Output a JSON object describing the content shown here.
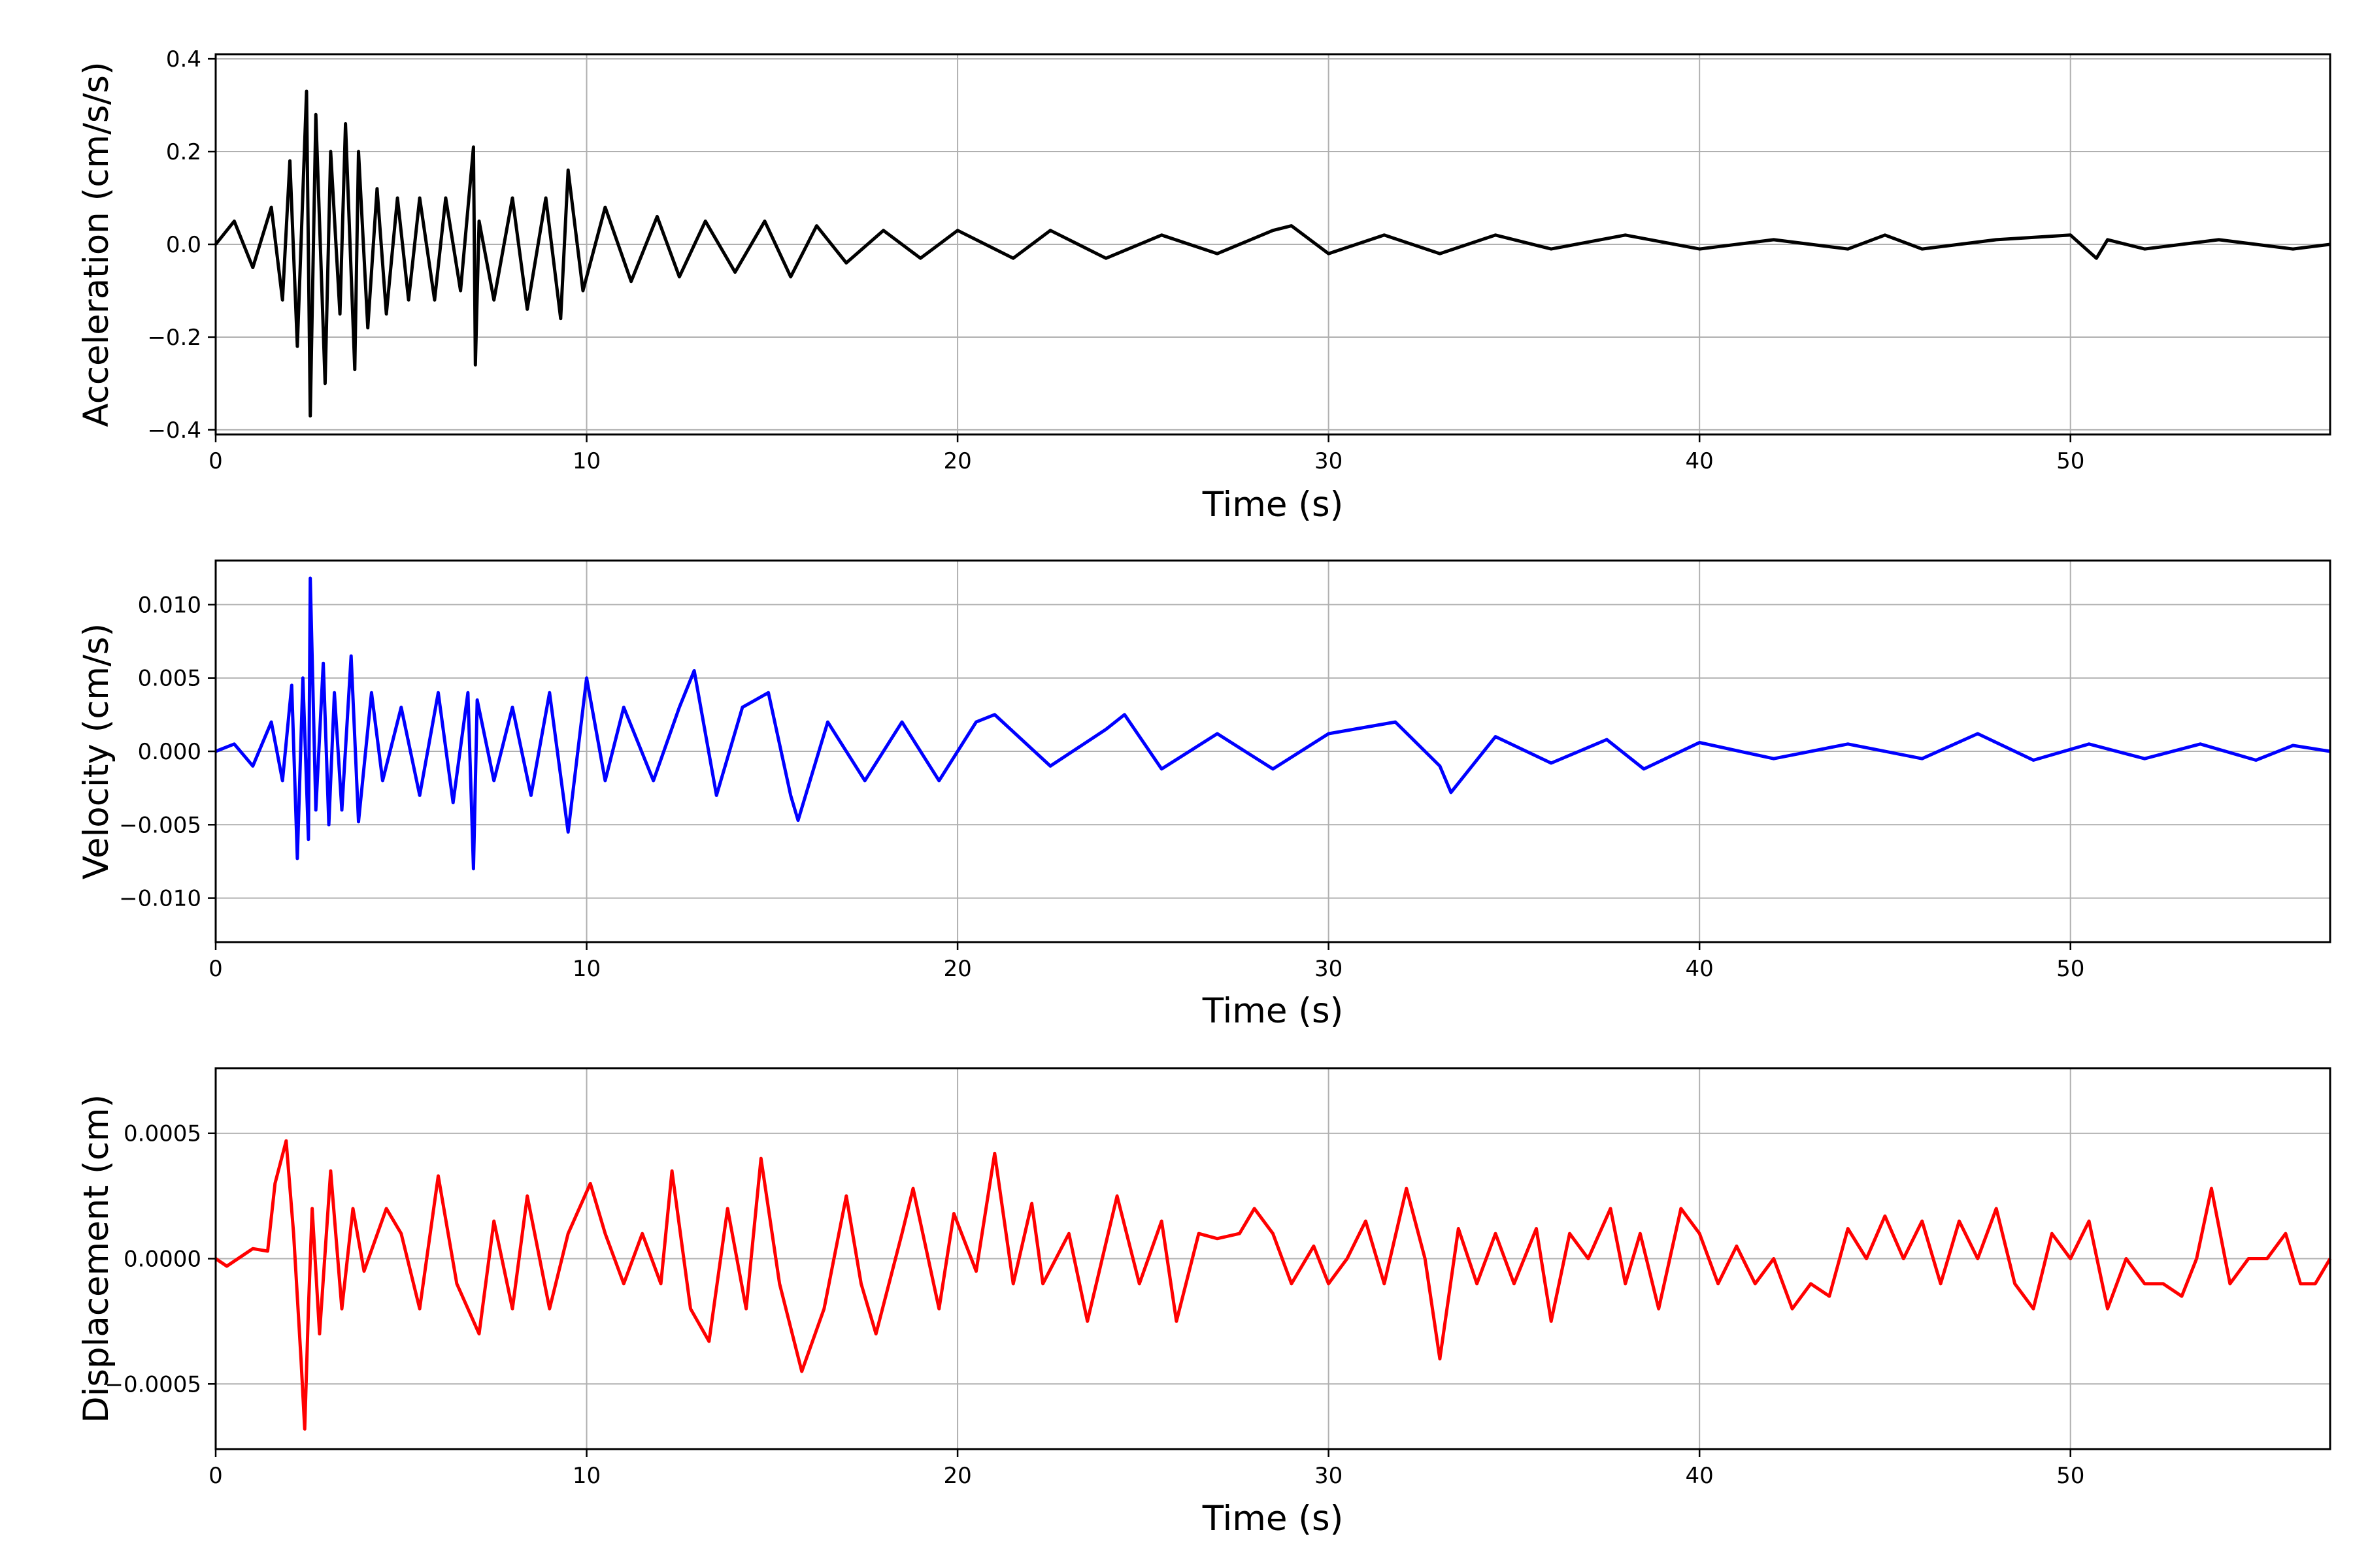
{
  "chart_data": [
    {
      "type": "line",
      "xlabel": "Time (s)",
      "ylabel": "Acceleration (cm/s/s)",
      "xlim": [
        0,
        57
      ],
      "ylim": [
        -0.41,
        0.41
      ],
      "xticks": [
        0,
        10,
        20,
        30,
        40,
        50
      ],
      "xtick_labels": [
        "0",
        "10",
        "20",
        "30",
        "40",
        "50"
      ],
      "yticks": [
        -0.4,
        -0.2,
        0.0,
        0.2,
        0.4
      ],
      "ytick_labels": [
        "−0.4",
        "−0.2",
        "0.0",
        "0.2",
        "0.4"
      ],
      "grid": true,
      "series": [
        {
          "color": "#000000",
          "x": [
            0,
            0.5,
            1,
            1.5,
            1.8,
            2.0,
            2.2,
            2.45,
            2.55,
            2.7,
            2.95,
            3.1,
            3.35,
            3.5,
            3.75,
            3.85,
            4.1,
            4.35,
            4.6,
            4.9,
            5.2,
            5.5,
            5.9,
            6.2,
            6.6,
            6.95,
            7.0,
            7.1,
            7.5,
            8.0,
            8.4,
            8.9,
            9.3,
            9.5,
            9.9,
            10.5,
            11.2,
            11.9,
            12.5,
            13.2,
            14.0,
            14.8,
            15.5,
            16.2,
            17.0,
            18.0,
            19.0,
            20.0,
            21.5,
            22.5,
            24.0,
            25.5,
            27.0,
            28.5,
            29.0,
            30.0,
            31.5,
            33.0,
            34.5,
            36.0,
            38.0,
            40.0,
            42.0,
            44.0,
            45.0,
            46.0,
            48.0,
            50.0,
            50.7,
            51.0,
            52.0,
            54.0,
            56.0,
            57.0
          ],
          "y": [
            0.0,
            0.05,
            -0.05,
            0.08,
            -0.12,
            0.18,
            -0.22,
            0.33,
            -0.37,
            0.28,
            -0.3,
            0.2,
            -0.15,
            0.26,
            -0.27,
            0.2,
            -0.18,
            0.12,
            -0.15,
            0.1,
            -0.12,
            0.1,
            -0.12,
            0.1,
            -0.1,
            0.21,
            -0.26,
            0.05,
            -0.12,
            0.1,
            -0.14,
            0.1,
            -0.16,
            0.16,
            -0.1,
            0.08,
            -0.08,
            0.06,
            -0.07,
            0.05,
            -0.06,
            0.05,
            -0.07,
            0.04,
            -0.04,
            0.03,
            -0.03,
            0.03,
            -0.03,
            0.03,
            -0.03,
            0.02,
            -0.02,
            0.03,
            0.04,
            -0.02,
            0.02,
            -0.02,
            0.02,
            -0.01,
            0.02,
            -0.01,
            0.01,
            -0.01,
            0.02,
            -0.01,
            0.01,
            0.02,
            -0.03,
            0.01,
            -0.01,
            0.01,
            -0.01,
            0.0
          ]
        }
      ]
    },
    {
      "type": "line",
      "xlabel": "Time (s)",
      "ylabel": "Velocity (cm/s)",
      "xlim": [
        0,
        57
      ],
      "ylim": [
        -0.013,
        0.013
      ],
      "xticks": [
        0,
        10,
        20,
        30,
        40,
        50
      ],
      "xtick_labels": [
        "0",
        "10",
        "20",
        "30",
        "40",
        "50"
      ],
      "yticks": [
        -0.01,
        -0.005,
        0.0,
        0.005,
        0.01
      ],
      "ytick_labels": [
        "−0.010",
        "−0.005",
        "0.000",
        "0.005",
        "0.010"
      ],
      "grid": true,
      "series": [
        {
          "color": "#0000ff",
          "x": [
            0,
            0.5,
            1.0,
            1.5,
            1.8,
            2.05,
            2.2,
            2.35,
            2.5,
            2.55,
            2.7,
            2.9,
            3.05,
            3.2,
            3.4,
            3.65,
            3.85,
            4.2,
            4.5,
            5.0,
            5.5,
            6.0,
            6.4,
            6.8,
            6.95,
            7.05,
            7.5,
            8.0,
            8.5,
            9.0,
            9.5,
            10.0,
            10.5,
            11.0,
            11.8,
            12.5,
            12.9,
            13.5,
            14.2,
            14.9,
            15.5,
            15.7,
            16.5,
            17.5,
            18.5,
            19.5,
            20.5,
            21.0,
            22.5,
            24.0,
            24.5,
            25.5,
            27.0,
            28.5,
            30.0,
            31.8,
            33.0,
            33.3,
            34.5,
            36.0,
            37.5,
            38.5,
            40.0,
            42.0,
            44.0,
            46.0,
            47.5,
            49.0,
            50.5,
            52.0,
            53.5,
            55.0,
            56.0,
            57.0
          ],
          "y": [
            0.0,
            0.0005,
            -0.001,
            0.002,
            -0.002,
            0.0045,
            -0.0073,
            0.005,
            -0.006,
            0.0118,
            -0.004,
            0.006,
            -0.005,
            0.004,
            -0.004,
            0.0065,
            -0.0048,
            0.004,
            -0.002,
            0.003,
            -0.003,
            0.004,
            -0.0035,
            0.004,
            -0.008,
            0.0035,
            -0.002,
            0.003,
            -0.003,
            0.004,
            -0.0055,
            0.005,
            -0.002,
            0.003,
            -0.002,
            0.003,
            0.0055,
            -0.003,
            0.003,
            0.004,
            -0.003,
            -0.0047,
            0.002,
            -0.002,
            0.002,
            -0.002,
            0.002,
            0.0025,
            -0.001,
            0.0015,
            0.0025,
            -0.0012,
            0.0012,
            -0.0012,
            0.0012,
            0.002,
            -0.001,
            -0.0028,
            0.001,
            -0.0008,
            0.0008,
            -0.0012,
            0.0006,
            -0.0005,
            0.0005,
            -0.0005,
            0.0012,
            -0.0006,
            0.0005,
            -0.0005,
            0.0005,
            -0.0006,
            0.0004,
            0.0
          ]
        }
      ]
    },
    {
      "type": "line",
      "xlabel": "Time (s)",
      "ylabel": "Displacement (cm)",
      "xlim": [
        0,
        57
      ],
      "ylim": [
        -0.00076,
        0.00076
      ],
      "xticks": [
        0,
        10,
        20,
        30,
        40,
        50
      ],
      "xtick_labels": [
        "0",
        "10",
        "20",
        "30",
        "40",
        "50"
      ],
      "yticks": [
        -0.0005,
        0.0,
        0.0005
      ],
      "ytick_labels": [
        "−0.0005",
        "0.0000",
        "0.0005"
      ],
      "grid": true,
      "series": [
        {
          "color": "#ff0000",
          "x": [
            0,
            0.3,
            0.6,
            1.0,
            1.4,
            1.6,
            1.9,
            2.1,
            2.3,
            2.4,
            2.5,
            2.6,
            2.8,
            3.1,
            3.4,
            3.7,
            4.0,
            4.6,
            5.0,
            5.5,
            6.0,
            6.5,
            7.1,
            7.5,
            8.0,
            8.4,
            9.0,
            9.5,
            10.1,
            10.5,
            11.0,
            11.5,
            12.0,
            12.3,
            12.8,
            13.3,
            13.8,
            14.3,
            14.7,
            15.2,
            15.8,
            16.4,
            17.0,
            17.4,
            17.8,
            18.5,
            18.8,
            19.5,
            19.9,
            20.5,
            21.0,
            21.5,
            22.0,
            22.3,
            23.0,
            23.5,
            24.3,
            24.9,
            25.5,
            25.9,
            26.5,
            27.0,
            27.6,
            28.0,
            28.5,
            29.0,
            29.6,
            30.0,
            30.5,
            31.0,
            31.5,
            32.1,
            32.6,
            33.0,
            33.5,
            34.0,
            34.5,
            35.0,
            35.6,
            36.0,
            36.5,
            37.0,
            37.6,
            38.0,
            38.4,
            38.9,
            39.5,
            40.0,
            40.5,
            41.0,
            41.5,
            42.0,
            42.5,
            43.0,
            43.5,
            44.0,
            44.5,
            45.0,
            45.5,
            46.0,
            46.5,
            47.0,
            47.5,
            48.0,
            48.5,
            49.0,
            49.5,
            50.0,
            50.5,
            51.0,
            51.5,
            52.0,
            52.5,
            53.0,
            53.4,
            53.8,
            54.3,
            54.8,
            55.3,
            55.8,
            56.2,
            56.6,
            57.0
          ],
          "y": [
            0.0,
            -3e-05,
            0.0,
            4e-05,
            3e-05,
            0.0003,
            0.00047,
            0.0001,
            -0.0004,
            -0.00068,
            -0.0002,
            0.0002,
            -0.0003,
            0.00035,
            -0.0002,
            0.0002,
            -5e-05,
            0.0002,
            0.0001,
            -0.0002,
            0.00033,
            -0.0001,
            -0.0003,
            0.00015,
            -0.0002,
            0.00025,
            -0.0002,
            0.0001,
            0.0003,
            0.0001,
            -0.0001,
            0.0001,
            -0.0001,
            0.00035,
            -0.0002,
            -0.00033,
            0.0002,
            -0.0002,
            0.0004,
            -0.0001,
            -0.00045,
            -0.0002,
            0.00025,
            -0.0001,
            -0.0003,
            0.0001,
            0.00028,
            -0.0002,
            0.00018,
            -5e-05,
            0.00042,
            -0.0001,
            0.00022,
            -0.0001,
            0.0001,
            -0.00025,
            0.00025,
            -0.0001,
            0.00015,
            -0.00025,
            0.0001,
            8e-05,
            0.0001,
            0.0002,
            0.0001,
            -0.0001,
            5e-05,
            -0.0001,
            0.0,
            0.00015,
            -0.0001,
            0.00028,
            0.0,
            -0.0004,
            0.00012,
            -0.0001,
            0.0001,
            -0.0001,
            0.00012,
            -0.00025,
            0.0001,
            0.0,
            0.0002,
            -0.0001,
            0.0001,
            -0.0002,
            0.0002,
            0.0001,
            -0.0001,
            5e-05,
            -0.0001,
            0.0,
            -0.0002,
            -0.0001,
            -0.00015,
            0.00012,
            0.0,
            0.00017,
            0.0,
            0.00015,
            -0.0001,
            0.00015,
            0.0,
            0.0002,
            -0.0001,
            -0.0002,
            0.0001,
            0.0,
            0.00015,
            -0.0002,
            0.0,
            -0.0001,
            -0.0001,
            -0.00015,
            0.0,
            0.00028,
            -0.0001,
            0.0,
            0.0,
            0.0001,
            -0.0001,
            -0.0001,
            0.0
          ]
        }
      ]
    }
  ]
}
